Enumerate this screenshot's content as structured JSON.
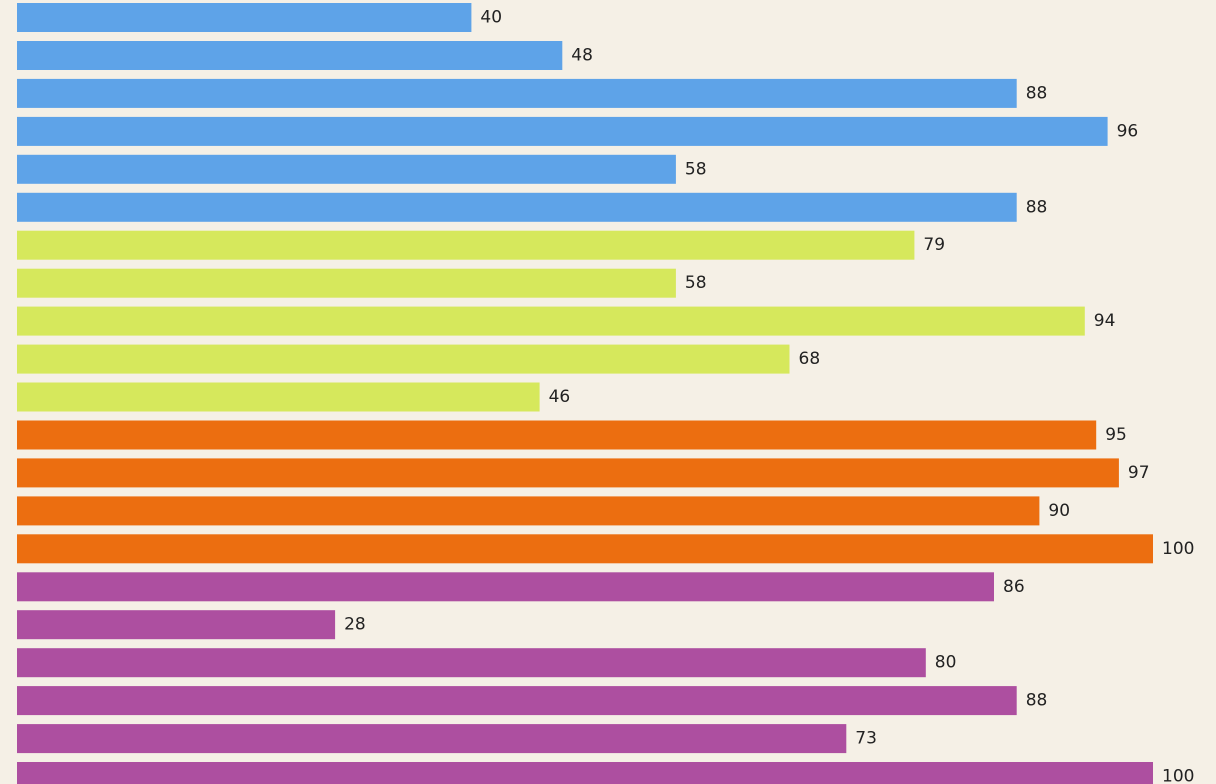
{
  "background_color": "#f5f0e6",
  "chart_data": {
    "type": "bar",
    "orientation": "horizontal",
    "title": "",
    "xlabel": "",
    "ylabel": "",
    "axes_visible": false,
    "grid": false,
    "legend": "none",
    "value_range": [
      0,
      100
    ],
    "label_color": "#222222",
    "groups": [
      {
        "color": "#5ea3e8",
        "values": [
          40,
          48,
          88,
          96,
          58,
          88
        ]
      },
      {
        "color": "#d6e85c",
        "values": [
          79,
          58,
          94,
          68,
          46
        ]
      },
      {
        "color": "#ec6e10",
        "values": [
          95,
          97,
          90,
          100
        ]
      },
      {
        "color": "#ad4fa0",
        "values": [
          86,
          28,
          80,
          88,
          73,
          100
        ]
      }
    ]
  }
}
